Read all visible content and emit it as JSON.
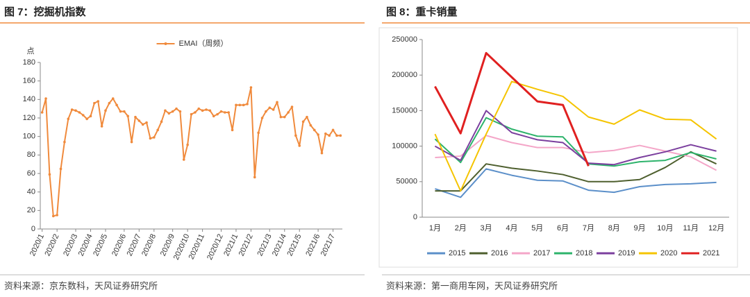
{
  "chart_data": [
    {
      "type": "line",
      "title": "图 7：挖掘机指数",
      "y_label": "点",
      "source": "资料来源：京东数科，天风证券研究所",
      "categories": [
        "2020/1",
        null,
        null,
        null,
        "2020/2",
        null,
        null,
        null,
        null,
        "2020/3",
        null,
        null,
        null,
        "2020/4",
        null,
        null,
        null,
        "2020/5",
        null,
        null,
        null,
        null,
        "2020/6",
        null,
        null,
        null,
        "2020/7",
        null,
        null,
        null,
        "2020/8",
        null,
        null,
        null,
        null,
        "2020/9",
        null,
        null,
        null,
        "2020/10",
        null,
        null,
        null,
        "2020/11",
        null,
        null,
        null,
        null,
        "2020/12",
        null,
        null,
        null,
        "2021/1",
        null,
        null,
        null,
        "2021/2",
        null,
        null,
        null,
        null,
        "2021/3",
        null,
        null,
        null,
        "2021/4",
        null,
        null,
        null,
        "2021/5",
        null,
        null,
        null,
        null,
        "2021/6",
        null,
        null,
        null,
        "2021/7",
        null,
        null
      ],
      "series": [
        {
          "name": "EMAI（周频）",
          "color": "#f08a3c",
          "values": [
            126,
            141,
            59,
            14,
            15,
            65,
            94,
            119,
            129,
            128,
            126,
            123,
            119,
            122,
            136,
            138,
            111,
            128,
            136,
            141,
            134,
            127,
            127,
            122,
            94,
            121,
            117,
            113,
            115,
            98,
            99,
            107,
            116,
            128,
            125,
            127,
            130,
            127,
            75,
            91,
            124,
            126,
            130,
            128,
            129,
            128,
            122,
            124,
            127,
            126,
            126,
            107,
            134,
            134,
            134,
            135,
            153,
            56,
            104,
            120,
            127,
            131,
            129,
            137,
            121,
            121,
            126,
            132,
            101,
            90,
            116,
            121,
            112,
            107,
            102,
            82,
            103,
            101,
            107,
            101,
            101
          ]
        }
      ],
      "ylim": [
        0,
        180
      ],
      "yticks": [
        0,
        20,
        40,
        60,
        80,
        100,
        120,
        140,
        160,
        180
      ],
      "legend": "top",
      "markers": true
    },
    {
      "type": "line",
      "title": "图 8：重卡销量",
      "source": "资料来源：第一商用车网，天风证券研究所",
      "categories": [
        "1月",
        "2月",
        "3月",
        "4月",
        "5月",
        "6月",
        "7月",
        "8月",
        "9月",
        "10月",
        "11月",
        "12月"
      ],
      "series": [
        {
          "name": "2015",
          "color": "#5b8fc9",
          "values": [
            40000,
            28000,
            68000,
            59000,
            52000,
            51000,
            38000,
            35000,
            43000,
            46000,
            47000,
            49000
          ]
        },
        {
          "name": "2016",
          "color": "#4e5f2e",
          "values": [
            37000,
            37000,
            75000,
            69000,
            65000,
            60000,
            50000,
            50000,
            53000,
            70000,
            92000,
            75000
          ]
        },
        {
          "name": "2017",
          "color": "#f4a6c8",
          "values": [
            84000,
            86000,
            115000,
            105000,
            98000,
            98000,
            91000,
            94000,
            101000,
            93000,
            85000,
            66000
          ]
        },
        {
          "name": "2018",
          "color": "#2db36b",
          "values": [
            110000,
            77000,
            140000,
            124000,
            114000,
            113000,
            75000,
            72000,
            78000,
            80000,
            91000,
            82000
          ]
        },
        {
          "name": "2019",
          "color": "#7b3f9e",
          "values": [
            100000,
            80000,
            150000,
            119000,
            109000,
            105000,
            76000,
            74000,
            84000,
            92000,
            102000,
            93000
          ]
        },
        {
          "name": "2020",
          "color": "#f5c400",
          "values": [
            117000,
            37000,
            117000,
            191000,
            180000,
            170000,
            141000,
            131000,
            151000,
            138000,
            137000,
            110000
          ]
        },
        {
          "name": "2021",
          "color": "#e02020",
          "values": [
            184000,
            118000,
            231000,
            197000,
            163000,
            158000,
            72000,
            null,
            null,
            null,
            null,
            null
          ]
        }
      ],
      "ylim": [
        0,
        250000
      ],
      "yticks": [
        0,
        50000,
        100000,
        150000,
        200000,
        250000
      ],
      "legend": "bottom",
      "markers": false
    }
  ]
}
